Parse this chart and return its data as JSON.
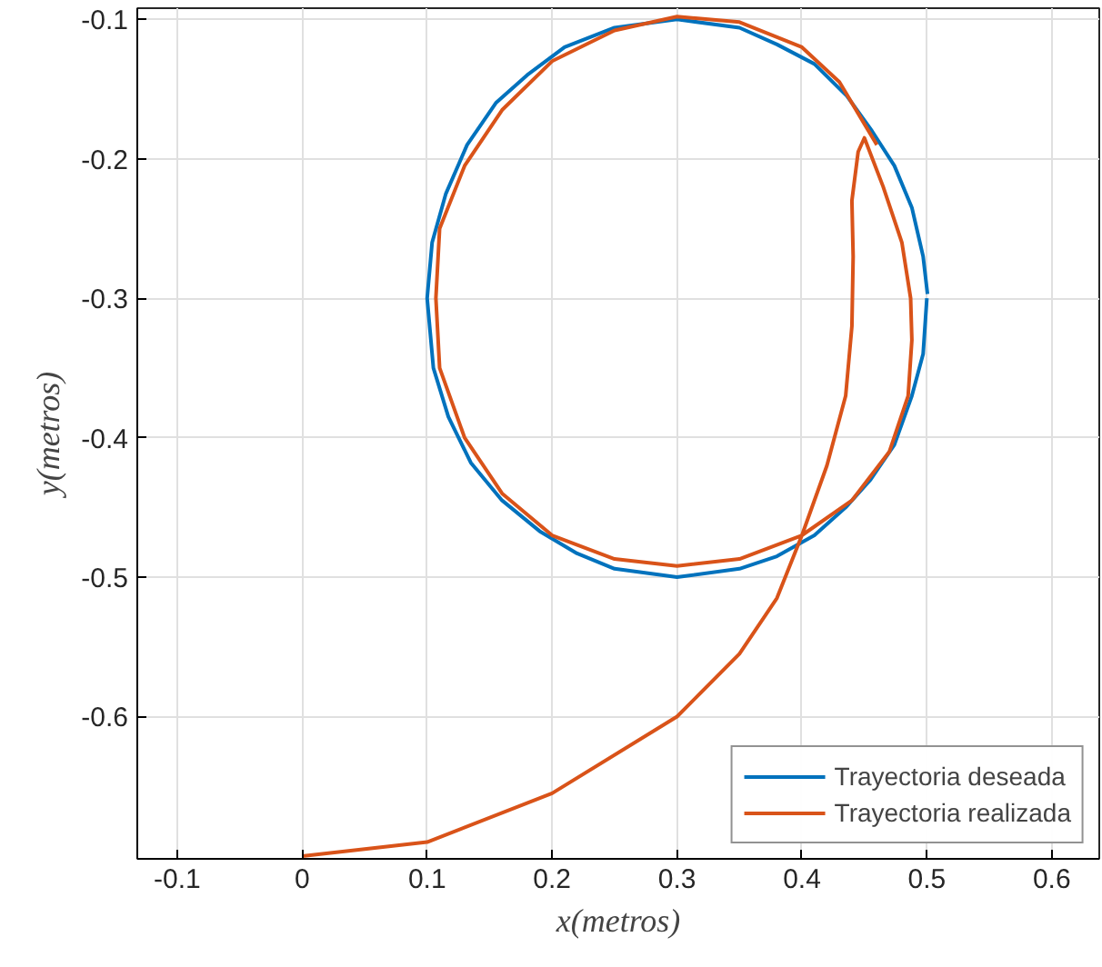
{
  "chart_data": {
    "type": "line",
    "xlabel": "x(metros)",
    "ylabel": "y(metros)",
    "xlim": [
      -0.132,
      0.638
    ],
    "ylim": [
      -0.702,
      -0.092
    ],
    "xticks": [
      -0.1,
      0,
      0.1,
      0.2,
      0.3,
      0.4,
      0.5,
      0.6
    ],
    "yticks": [
      -0.1,
      -0.2,
      -0.3,
      -0.4,
      -0.5,
      -0.6
    ],
    "grid": true,
    "legend": "bottom right",
    "series": [
      {
        "name": "Trayectoria deseada",
        "color": "#0072bd",
        "x": [
          0.5,
          0.497,
          0.488,
          0.474,
          0.455,
          0.435,
          0.41,
          0.38,
          0.35,
          0.3,
          0.25,
          0.22,
          0.19,
          0.16,
          0.135,
          0.117,
          0.105,
          0.1,
          0.104,
          0.115,
          0.132,
          0.155,
          0.18,
          0.21,
          0.25,
          0.3,
          0.35,
          0.38,
          0.41,
          0.436,
          0.456,
          0.474,
          0.488,
          0.497,
          0.5005
        ],
        "values": [
          -0.3,
          -0.34,
          -0.37,
          -0.405,
          -0.43,
          -0.45,
          -0.47,
          -0.485,
          -0.494,
          -0.5,
          -0.494,
          -0.483,
          -0.467,
          -0.445,
          -0.418,
          -0.385,
          -0.35,
          -0.3,
          -0.26,
          -0.225,
          -0.19,
          -0.16,
          -0.14,
          -0.12,
          -0.106,
          -0.1,
          -0.106,
          -0.118,
          -0.132,
          -0.155,
          -0.18,
          -0.205,
          -0.235,
          -0.27,
          -0.297
        ]
      },
      {
        "name": "Trayectoria realizada",
        "color": "#d95319",
        "x": [
          0,
          0.1,
          0.2,
          0.3,
          0.35,
          0.38,
          0.4,
          0.42,
          0.435,
          0.44,
          0.441,
          0.44,
          0.445,
          0.45,
          0.465,
          0.48,
          0.487,
          0.488,
          0.485,
          0.47,
          0.44,
          0.4,
          0.35,
          0.3,
          0.25,
          0.2,
          0.16,
          0.13,
          0.11,
          0.107,
          0.11,
          0.13,
          0.16,
          0.2,
          0.25,
          0.3,
          0.35,
          0.4,
          0.43,
          0.45,
          0.46
        ],
        "values": [
          -0.7,
          -0.69,
          -0.655,
          -0.6,
          -0.555,
          -0.515,
          -0.47,
          -0.42,
          -0.37,
          -0.32,
          -0.27,
          -0.23,
          -0.195,
          -0.185,
          -0.22,
          -0.26,
          -0.3,
          -0.33,
          -0.37,
          -0.41,
          -0.445,
          -0.47,
          -0.487,
          -0.492,
          -0.487,
          -0.47,
          -0.44,
          -0.4,
          -0.35,
          -0.3,
          -0.25,
          -0.205,
          -0.165,
          -0.13,
          -0.108,
          -0.098,
          -0.102,
          -0.12,
          -0.145,
          -0.175,
          -0.19
        ]
      }
    ]
  }
}
